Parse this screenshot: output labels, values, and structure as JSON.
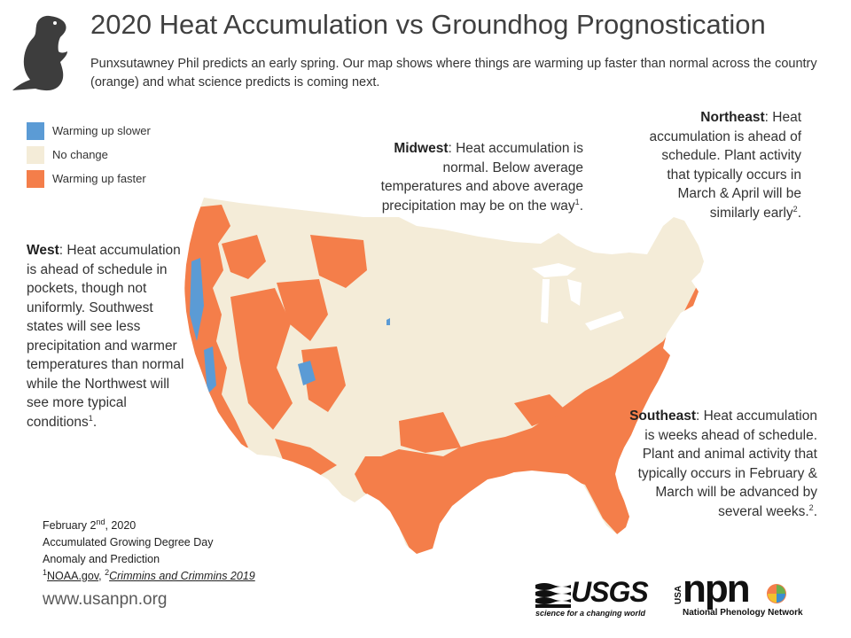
{
  "title": "2020 Heat Accumulation vs Groundhog Prognostication",
  "subtitle": "Punxsutawney Phil predicts an early spring. Our map shows where things are warming up faster than normal across the country (orange) and what science predicts is coming next.",
  "legend": [
    {
      "label": "Warming up slower",
      "color": "#5b9bd5"
    },
    {
      "label": "No change",
      "color": "#f4ecd8"
    },
    {
      "label": "Warming up faster",
      "color": "#f47e4a"
    }
  ],
  "regions": {
    "west": {
      "name": "West",
      "text": ": Heat accumulation is ahead of schedule in pockets, though not uniformly. Southwest states will see less precipitation and warmer temperatures than normal while the Northwest will see more typical conditions",
      "ref": "1",
      "end": "."
    },
    "midwest": {
      "name": "Midwest",
      "text": ": Heat accumulation is normal. Below average temperatures and above average precipitation may be on the way",
      "ref": "1",
      "end": "."
    },
    "northeast": {
      "name": "Northeast",
      "text": ": Heat accumulation is ahead of schedule. Plant activity that typically occurs in March & April will be similarly early",
      "ref": "2",
      "end": "."
    },
    "southeast": {
      "name": "Southeast",
      "text": ": Heat accumulation is weeks ahead of schedule. Plant and animal activity that typically occurs in February & March will be advanced by several weeks.",
      "ref": "2",
      "end": "."
    }
  },
  "footnote": {
    "date_pre": "February 2",
    "date_sup": "nd",
    "date_post": ", 2020",
    "line2": "Accumulated Growing Degree Day",
    "line3": "Anomaly and Prediction",
    "ref1_num": "1",
    "ref1_text": "NOAA.gov",
    "sep": ", ",
    "ref2_num": "2",
    "ref2_text": "Crimmins and Crimmins 2019"
  },
  "website": "www.usanpn.org",
  "logos": {
    "usgs_main": "USGS",
    "usgs_tagline": "science for a changing world",
    "npn_usa": "USA",
    "npn_main": "npn",
    "npn_tagline": "National Phenology Network"
  },
  "colors": {
    "faster": "#f47e4a",
    "normal": "#f4ecd8",
    "slower": "#5b9bd5",
    "groundhog": "#3d3d3d"
  },
  "icons": [
    "groundhog-icon",
    "usgs-logo",
    "npn-logo"
  ]
}
